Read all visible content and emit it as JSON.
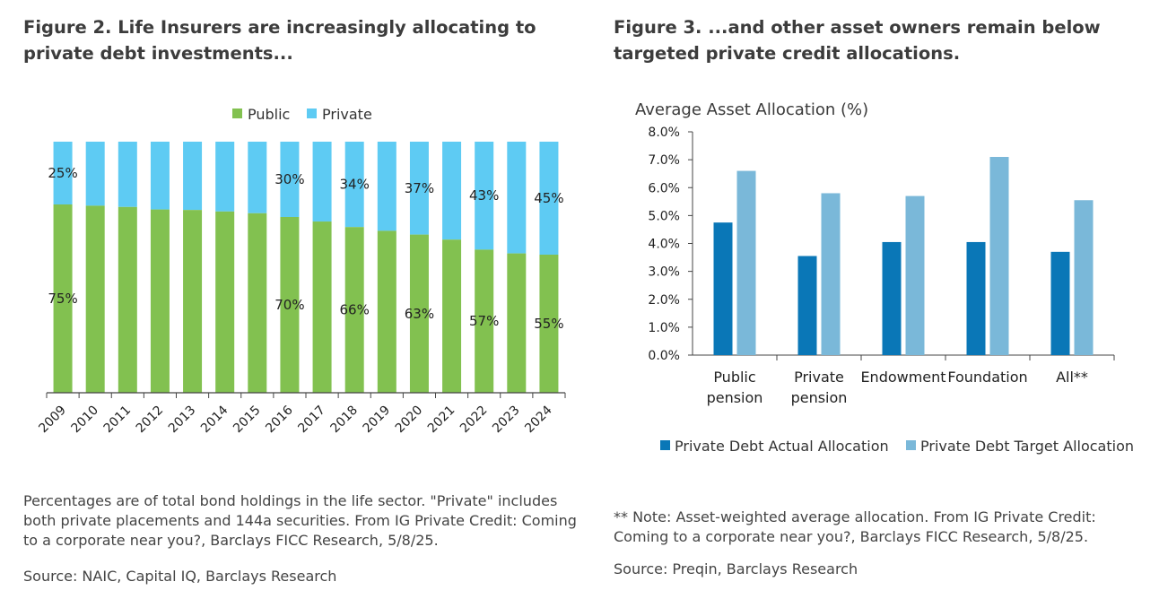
{
  "figure2": {
    "title": "Figure 2. Life Insurers are increasingly allocating to private debt investments...",
    "note": "Percentages are of total bond holdings in the life sector. \"Private\" includes both private placements and 144a securities. From IG Private Credit: Coming to a corporate near you?, Barclays FICC Research, 5/8/25.",
    "source": "Source: NAIC, Capital IQ, Barclays Research"
  },
  "figure3": {
    "title": "Figure 3. ...and other asset owners remain below targeted private credit allocations.",
    "note": "** Note: Asset-weighted average allocation. From IG Private Credit: Coming to a corporate near you?, Barclays FICC Research, 5/8/25.",
    "source": "Source: Preqin, Barclays Research"
  },
  "colors": {
    "public": "#82c150",
    "private": "#5ecbf3",
    "actual": "#0a77b7",
    "target": "#7ab8d9"
  },
  "chart_data": [
    {
      "type": "bar",
      "stacked": true,
      "percent": true,
      "categories": [
        "2009",
        "2010",
        "2011",
        "2012",
        "2013",
        "2014",
        "2015",
        "2016",
        "2017",
        "2018",
        "2019",
        "2020",
        "2021",
        "2022",
        "2023",
        "2024"
      ],
      "series": [
        {
          "name": "Public",
          "values": [
            75,
            74.5,
            74,
            73,
            72.8,
            72.2,
            71.5,
            70,
            68.2,
            66,
            64.5,
            63,
            61,
            57,
            55.5,
            55
          ]
        },
        {
          "name": "Private",
          "values": [
            25,
            25.5,
            26,
            27,
            27.2,
            27.8,
            28.5,
            30,
            31.8,
            34,
            35.5,
            37,
            39,
            43,
            44.5,
            45
          ]
        }
      ],
      "data_labels": [
        {
          "category": "2009",
          "series": "Private",
          "text": "25%"
        },
        {
          "category": "2009",
          "series": "Public",
          "text": "75%"
        },
        {
          "category": "2016",
          "series": "Private",
          "text": "30%"
        },
        {
          "category": "2016",
          "series": "Public",
          "text": "70%"
        },
        {
          "category": "2018",
          "series": "Private",
          "text": "34%"
        },
        {
          "category": "2018",
          "series": "Public",
          "text": "66%"
        },
        {
          "category": "2020",
          "series": "Private",
          "text": "37%"
        },
        {
          "category": "2020",
          "series": "Public",
          "text": "63%"
        },
        {
          "category": "2022",
          "series": "Private",
          "text": "43%"
        },
        {
          "category": "2022",
          "series": "Public",
          "text": "57%"
        },
        {
          "category": "2024",
          "series": "Private",
          "text": "45%"
        },
        {
          "category": "2024",
          "series": "Public",
          "text": "55%"
        }
      ],
      "legend": [
        "Public",
        "Private"
      ],
      "legend_position": "top",
      "ylim": [
        0,
        100
      ],
      "title": "",
      "xlabel": "",
      "ylabel": ""
    },
    {
      "type": "bar",
      "grouped": true,
      "title": "Average Asset Allocation (%)",
      "categories": [
        [
          "Public",
          "pension"
        ],
        [
          "Private",
          "pension"
        ],
        [
          "Endowment"
        ],
        [
          "Foundation"
        ],
        [
          "All**"
        ]
      ],
      "series": [
        {
          "name": "Private Debt Actual Allocation",
          "values": [
            4.75,
            3.55,
            4.05,
            4.05,
            3.7
          ]
        },
        {
          "name": "Private Debt Target Allocation",
          "values": [
            6.6,
            5.8,
            5.7,
            7.1,
            5.55
          ]
        }
      ],
      "yticks": [
        "0.0%",
        "1.0%",
        "2.0%",
        "3.0%",
        "4.0%",
        "5.0%",
        "6.0%",
        "7.0%",
        "8.0%"
      ],
      "ylim": [
        0,
        8
      ],
      "legend_position": "bottom",
      "xlabel": "",
      "ylabel": ""
    }
  ]
}
